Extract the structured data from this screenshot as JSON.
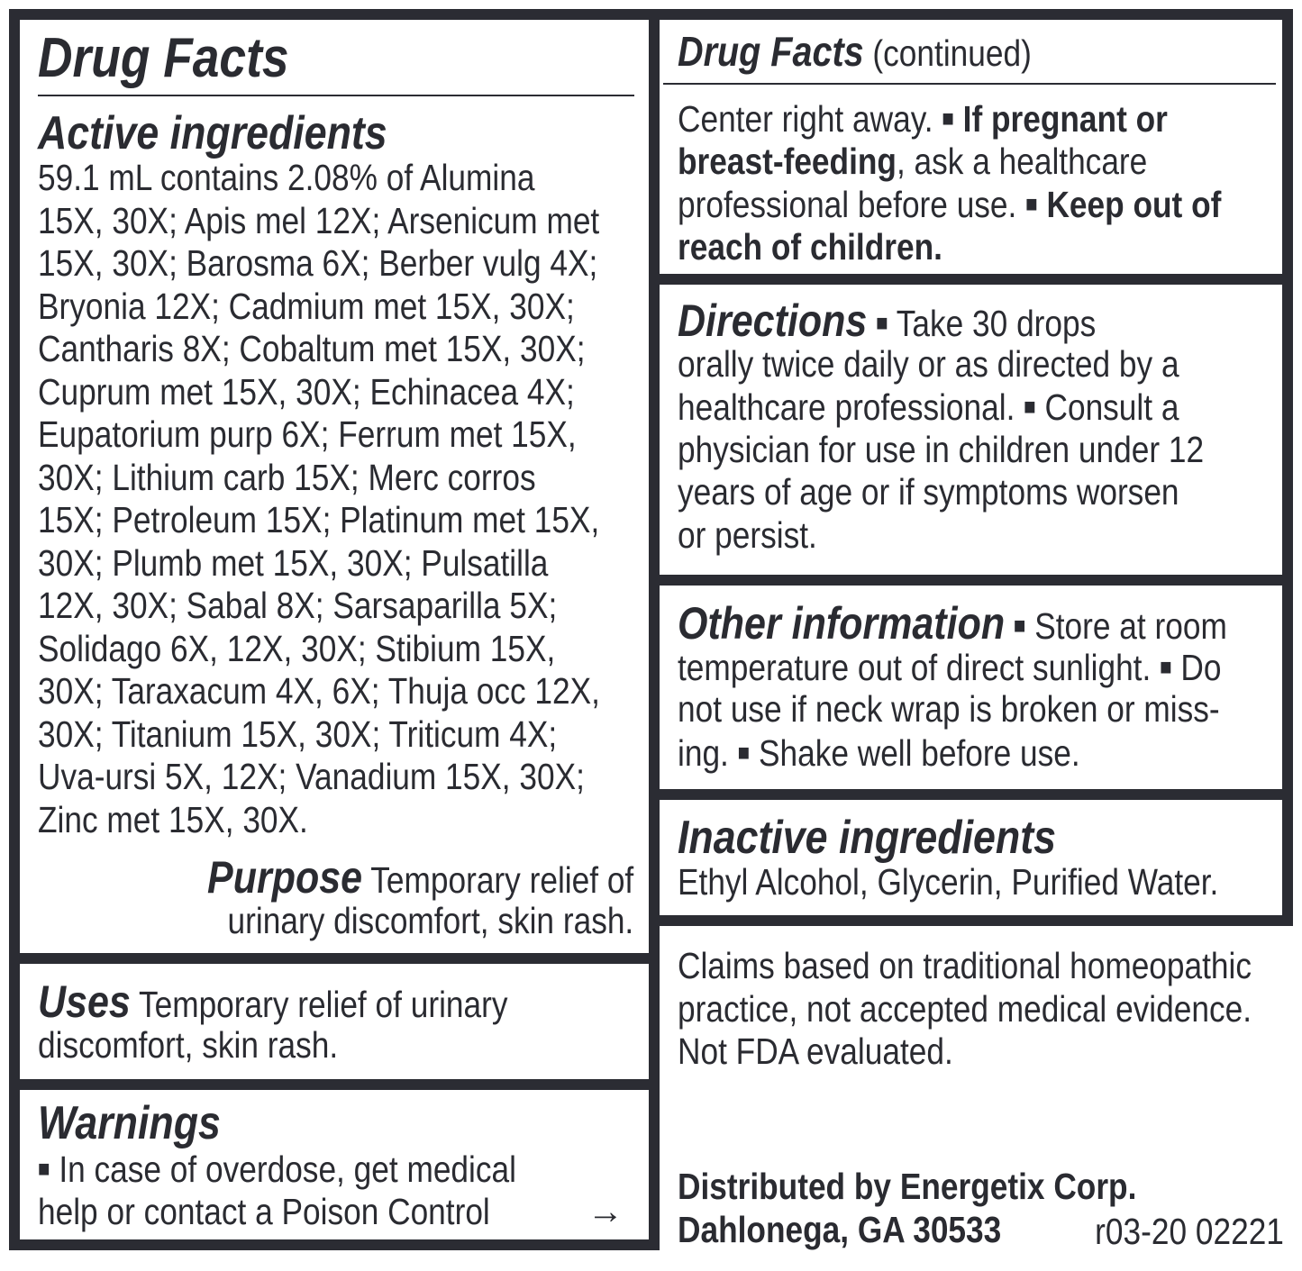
{
  "left": {
    "title": "Drug Facts",
    "active_heading": "Active ingredients",
    "active_lines": [
      [
        [
          "59.1 mL contains 2.08% of Alumina",
          ""
        ]
      ],
      [
        [
          "15X, 30X; Apis mel 12X; Arsenicum met",
          ""
        ]
      ],
      [
        [
          "15X, 30X; Barosma 6X; Berber vulg 4X;",
          ""
        ]
      ],
      [
        [
          "Bryonia 12X; Cadmium met 15X, 30X;",
          ""
        ]
      ],
      [
        [
          "Cantharis 8X; Cobaltum met 15X, 30X;",
          ""
        ]
      ],
      [
        [
          "Cuprum met 15X, 30X; Echinacea 4X;",
          ""
        ]
      ],
      [
        [
          "Eupatorium purp 6X; Ferrum met 15X,",
          ""
        ]
      ],
      [
        [
          "30X; Lithium carb 15X; Merc corros",
          ""
        ]
      ],
      [
        [
          "15X; Petroleum 15X; Platinum met 15X,",
          ""
        ]
      ],
      [
        [
          "30X; Plumb met 15X, 30X; Pulsatilla",
          ""
        ]
      ],
      [
        [
          "12X, 30X; Sabal 8X; Sarsaparilla 5X;",
          ""
        ]
      ],
      [
        [
          "Solidago 6X, 12X, 30X; Stibium 15X,",
          ""
        ]
      ],
      [
        [
          "30X; Taraxacum 4X, 6X; Thuja occ 12X,",
          ""
        ]
      ],
      [
        [
          "30X; Titanium 15X, 30X; Triticum 4X;",
          ""
        ]
      ],
      [
        [
          "Uva-ursi 5X, 12X; Vanadium 15X, 30X;",
          ""
        ]
      ],
      [
        [
          "Zinc met 15X, 30X.",
          ""
        ]
      ]
    ],
    "purpose_lines": [
      [
        [
          "Purpose",
          "h"
        ],
        [
          " Temporary relief of",
          ""
        ]
      ],
      [
        [
          "urinary discomfort, skin rash.",
          ""
        ]
      ]
    ],
    "uses_lines": [
      [
        [
          "Uses",
          "h"
        ],
        [
          " Temporary relief of urinary",
          ""
        ]
      ],
      [
        [
          "discomfort, skin rash.",
          ""
        ]
      ]
    ],
    "warnings_heading": "Warnings",
    "warnings_lines": [
      [
        [
          "■",
          "bu"
        ],
        [
          " In case of overdose, get medical",
          ""
        ]
      ],
      [
        [
          "help or contact a Poison Control",
          ""
        ]
      ]
    ],
    "continue_arrow": "→"
  },
  "right": {
    "header_lines": [
      [
        [
          "Drug Facts",
          "hi"
        ],
        [
          " (continued)",
          ""
        ]
      ]
    ],
    "warnings_cont_lines": [
      [
        [
          "Center right away. ",
          ""
        ],
        [
          "■",
          "bu"
        ],
        [
          " ",
          ""
        ],
        [
          "If pregnant or",
          "b"
        ]
      ],
      [
        [
          "breast-feeding",
          "b"
        ],
        [
          ", ask a healthcare",
          ""
        ]
      ],
      [
        [
          "professional before use. ",
          ""
        ],
        [
          "■",
          "bu"
        ],
        [
          " ",
          ""
        ],
        [
          "Keep out of",
          "b"
        ]
      ],
      [
        [
          "reach of children.",
          "b"
        ]
      ]
    ],
    "directions_lines": [
      [
        [
          "Directions",
          "h"
        ],
        [
          " ",
          ""
        ],
        [
          "■",
          "bu"
        ],
        [
          " Take 30 drops",
          ""
        ]
      ],
      [
        [
          "orally twice daily or as directed by a",
          ""
        ]
      ],
      [
        [
          "healthcare professional. ",
          ""
        ],
        [
          "■",
          "bu"
        ],
        [
          " Consult a",
          ""
        ]
      ],
      [
        [
          "physician for use in children under 12",
          ""
        ]
      ],
      [
        [
          "years of age or if symptoms worsen",
          ""
        ]
      ],
      [
        [
          "or persist.",
          ""
        ]
      ]
    ],
    "other_lines": [
      [
        [
          "Other information",
          "h"
        ],
        [
          " ",
          ""
        ],
        [
          "■",
          "bu"
        ],
        [
          " Store at room",
          ""
        ]
      ],
      [
        [
          "temperature out of direct sunlight. ",
          ""
        ],
        [
          "■",
          "bu"
        ],
        [
          " Do",
          ""
        ]
      ],
      [
        [
          "not use if neck wrap is broken or miss-",
          ""
        ]
      ],
      [
        [
          "ing. ",
          ""
        ],
        [
          "■",
          "bu"
        ],
        [
          " Shake well before use.",
          ""
        ]
      ]
    ],
    "inactive_heading": "Inactive ingredients",
    "inactive_lines": [
      [
        [
          "Ethyl Alcohol, Glycerin, Purified Water.",
          ""
        ]
      ]
    ],
    "claims_lines": [
      [
        [
          "Claims based on traditional homeopathic",
          ""
        ]
      ],
      [
        [
          "practice, not accepted medical evidence.",
          ""
        ]
      ],
      [
        [
          "Not FDA evaluated.",
          ""
        ]
      ]
    ],
    "distributor_lines": [
      [
        [
          "Distributed by Energetix Corp.",
          "b"
        ]
      ],
      [
        [
          "Dahlonega, GA 30533",
          "b"
        ]
      ]
    ],
    "revision_code": "r03-20 02221"
  },
  "colors": {
    "ink": "#2a2b31",
    "border": "#2b2c33",
    "background": "#ffffff"
  }
}
